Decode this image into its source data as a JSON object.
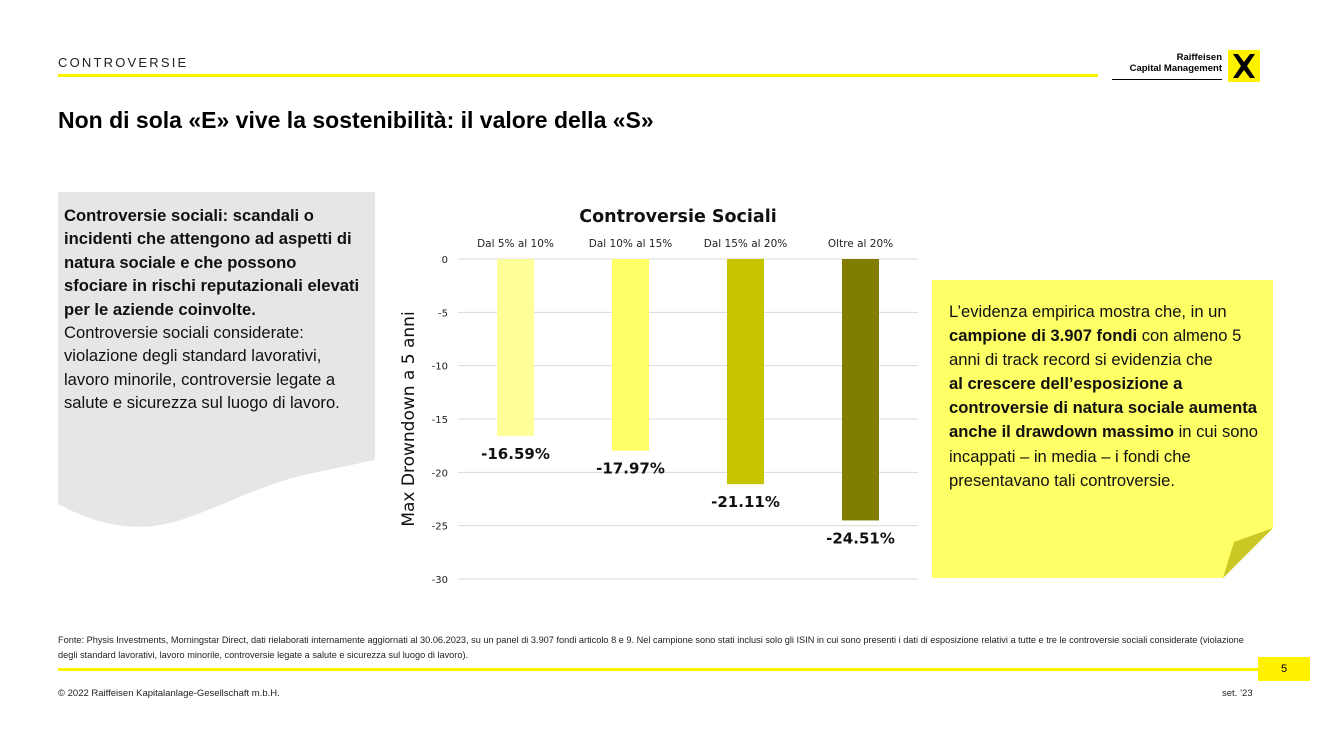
{
  "header": {
    "section": "CONTROVERSIE",
    "brand_line1": "Raiffeisen",
    "brand_line2": "Capital Management",
    "title": "Non di sola «E» vive la sostenibilità: il valore della «S»"
  },
  "left_box": {
    "bold": "Controversie sociali: scandali o incidenti che attengono ad aspetti di natura sociale e che possono sfociare in rischi reputazionali elevati per le aziende coinvolte.",
    "text": "Controversie sociali considerate: violazione degli standard lavorativi, lavoro minorile, controversie legate a salute e sicurezza sul luogo di lavoro."
  },
  "note": {
    "p1": "L’evidenza empirica mostra che, in un ",
    "b1": "campione di 3.907 fondi",
    "p2": " con almeno 5 anni di track record si evidenzia che",
    "b2": "al crescere dell’esposizione a controversie di natura sociale aumenta anche il drawdown massimo",
    "p3": " in cui sono incappati – in media – i fondi che presentavano tali controversie."
  },
  "chart_data": {
    "type": "bar",
    "title": "Controversie Sociali",
    "ylabel": "Max Drowndown a 5 anni",
    "categories": [
      "Dal 5% al 10%",
      "Dal 10% al 15%",
      "Dal 15% al 20%",
      "Oltre al 20%"
    ],
    "values": [
      -16.59,
      -17.97,
      -21.11,
      -24.51
    ],
    "data_labels": [
      "-16.59%",
      "-17.97%",
      "-21.11%",
      "-24.51%"
    ],
    "ylim": [
      -30,
      0
    ],
    "yticks": [
      0,
      -5,
      -10,
      -15,
      -20,
      -25,
      -30
    ],
    "colors": [
      "#ffff99",
      "#ffff66",
      "#c6c400",
      "#807d00"
    ],
    "grid": true,
    "category_position": "top"
  },
  "footer": {
    "source": "Fonte: Physis Investments, Morningstar Direct, dati rielaborati internamente aggiornati al 30.06.2023, su un panel di 3.907  fondi articolo 8 e 9. Nel campione sono stati inclusi solo gli ISIN in cui sono presenti i dati di esposizione relativi a tutte e tre le controversie sociali considerate (violazione degli standard lavorativi, lavoro minorile, controversie legate a  salute e sicurezza sul luogo di lavoro).",
    "page": "5",
    "copyright": "© 2022 Raiffeisen Kapitalanlage-Gesellschaft m.b.H.",
    "date": "set. ’23"
  },
  "colors": {
    "accent": "#fff200",
    "note_bg": "#ffff66",
    "box_bg": "#e6e6e6"
  }
}
